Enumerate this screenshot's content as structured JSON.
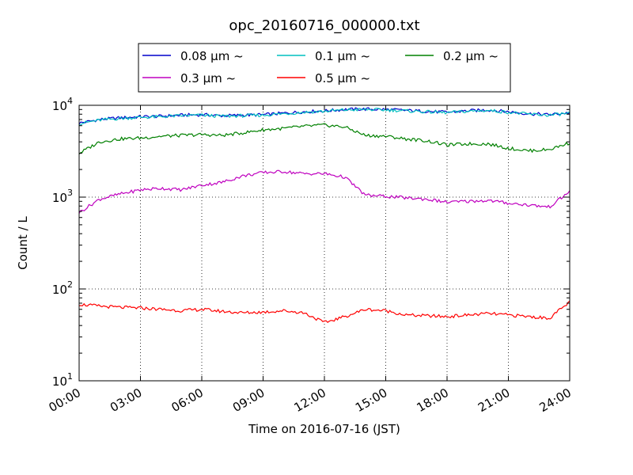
{
  "chart_data": {
    "type": "line",
    "title": "opc_20160716_000000.txt",
    "xlabel": "Time on 2016-07-16 (JST)",
    "ylabel": "Count / L",
    "y_scale": "log",
    "xlim": [
      "00:00",
      "24:00"
    ],
    "ylim": [
      10,
      10000
    ],
    "grid": true,
    "legend_position": "top-center",
    "x_ticks": [
      "00:00",
      "03:00",
      "06:00",
      "09:00",
      "12:00",
      "15:00",
      "18:00",
      "21:00",
      "24:00"
    ],
    "y_ticks": [
      {
        "base": "10",
        "exp": "1",
        "value": 10
      },
      {
        "base": "10",
        "exp": "2",
        "value": 100
      },
      {
        "base": "10",
        "exp": "3",
        "value": 1000
      },
      {
        "base": "10",
        "exp": "4",
        "value": 10000
      }
    ],
    "x": [
      "00:00",
      "01:00",
      "02:00",
      "03:00",
      "04:00",
      "05:00",
      "06:00",
      "07:00",
      "08:00",
      "09:00",
      "10:00",
      "11:00",
      "12:00",
      "13:00",
      "14:00",
      "15:00",
      "16:00",
      "17:00",
      "18:00",
      "19:00",
      "20:00",
      "21:00",
      "22:00",
      "23:00",
      "24:00"
    ],
    "series": [
      {
        "name": "0.08 µm ~",
        "color": "#0000cc",
        "values": [
          6400,
          7000,
          7300,
          7500,
          7600,
          7800,
          7900,
          7700,
          7800,
          7900,
          8200,
          8500,
          8700,
          9000,
          9100,
          9000,
          8800,
          8600,
          8400,
          8700,
          8900,
          8500,
          8100,
          7900,
          8300
        ]
      },
      {
        "name": "0.1 µm ~",
        "color": "#00bfbf",
        "values": [
          6300,
          6900,
          7200,
          7400,
          7500,
          7700,
          7800,
          7600,
          7700,
          7800,
          8100,
          8400,
          8600,
          8900,
          9000,
          8900,
          8700,
          8500,
          8300,
          8600,
          8800,
          8400,
          8000,
          7800,
          8200
        ]
      },
      {
        "name": "0.2 µm ~",
        "color": "#008000",
        "values": [
          3000,
          4000,
          4300,
          4400,
          4600,
          4700,
          4800,
          4700,
          5000,
          5400,
          5600,
          5900,
          6100,
          5800,
          4700,
          4600,
          4300,
          4100,
          3700,
          3800,
          3800,
          3400,
          3200,
          3300,
          3900
        ]
      },
      {
        "name": "0.3 µm ~",
        "color": "#bf00bf",
        "values": [
          680,
          950,
          1080,
          1200,
          1250,
          1200,
          1350,
          1450,
          1700,
          1850,
          1900,
          1800,
          1800,
          1650,
          1050,
          1020,
          980,
          950,
          880,
          900,
          920,
          860,
          820,
          780,
          1150
        ]
      },
      {
        "name": "0.5 µm ~",
        "color": "#ff0000",
        "values": [
          68,
          65,
          63,
          62,
          60,
          58,
          60,
          57,
          55,
          56,
          58,
          55,
          43,
          50,
          60,
          58,
          52,
          51,
          50,
          52,
          54,
          52,
          50,
          48,
          72
        ]
      }
    ]
  }
}
